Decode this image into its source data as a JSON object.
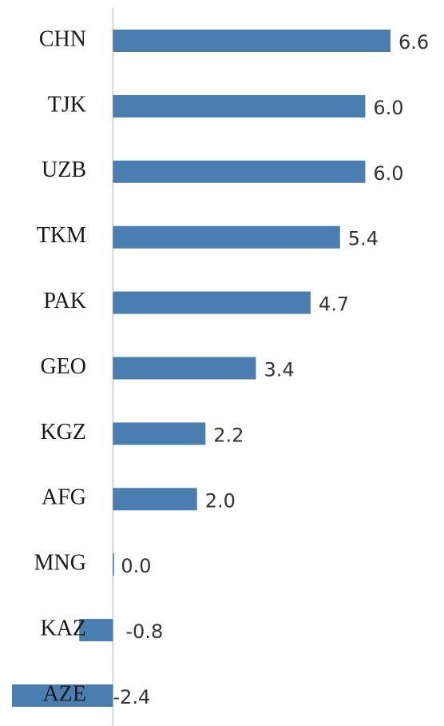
{
  "chart_data": {
    "type": "bar",
    "orientation": "horizontal",
    "categories": [
      "CHN",
      "TJK",
      "UZB",
      "TKM",
      "PAK",
      "GEO",
      "KGZ",
      "AFG",
      "MNG",
      "KAZ",
      "AZE"
    ],
    "values": [
      6.6,
      6,
      6,
      5.4,
      4.7,
      3.4,
      2.2,
      2,
      0,
      -0.8,
      -2.4
    ],
    "value_labels": [
      "6.6",
      "6.0",
      "6.0",
      "5.4",
      "4.7",
      "3.4",
      "2.2",
      "2.0",
      "0.0",
      "-0.8",
      "-2.4"
    ],
    "color": "#4a7eb0"
  }
}
